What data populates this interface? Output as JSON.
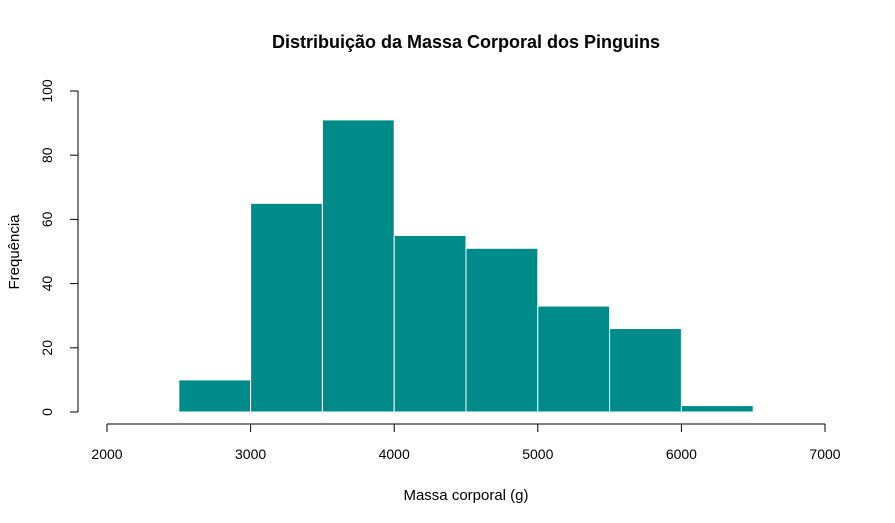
{
  "chart_data": {
    "type": "bar",
    "title": "Distribuição da Massa Corporal dos Pinguins",
    "xlabel": "Massa corporal (g)",
    "ylabel": "Frequência",
    "xlim": [
      2000,
      7000
    ],
    "ylim": [
      0,
      100
    ],
    "xticks": [
      2000,
      3000,
      4000,
      5000,
      6000,
      7000
    ],
    "yticks": [
      0,
      20,
      40,
      60,
      80,
      100
    ],
    "bins": [
      {
        "start": 2500,
        "end": 3000,
        "count": 10
      },
      {
        "start": 3000,
        "end": 3500,
        "count": 65
      },
      {
        "start": 3500,
        "end": 4000,
        "count": 91
      },
      {
        "start": 4000,
        "end": 4500,
        "count": 55
      },
      {
        "start": 4500,
        "end": 5000,
        "count": 51
      },
      {
        "start": 5000,
        "end": 5500,
        "count": 33
      },
      {
        "start": 5500,
        "end": 6000,
        "count": 26
      },
      {
        "start": 6000,
        "end": 6500,
        "count": 2
      }
    ],
    "bar_color": "#008b8b",
    "bar_border_color": "#ffffff",
    "grid": false
  }
}
